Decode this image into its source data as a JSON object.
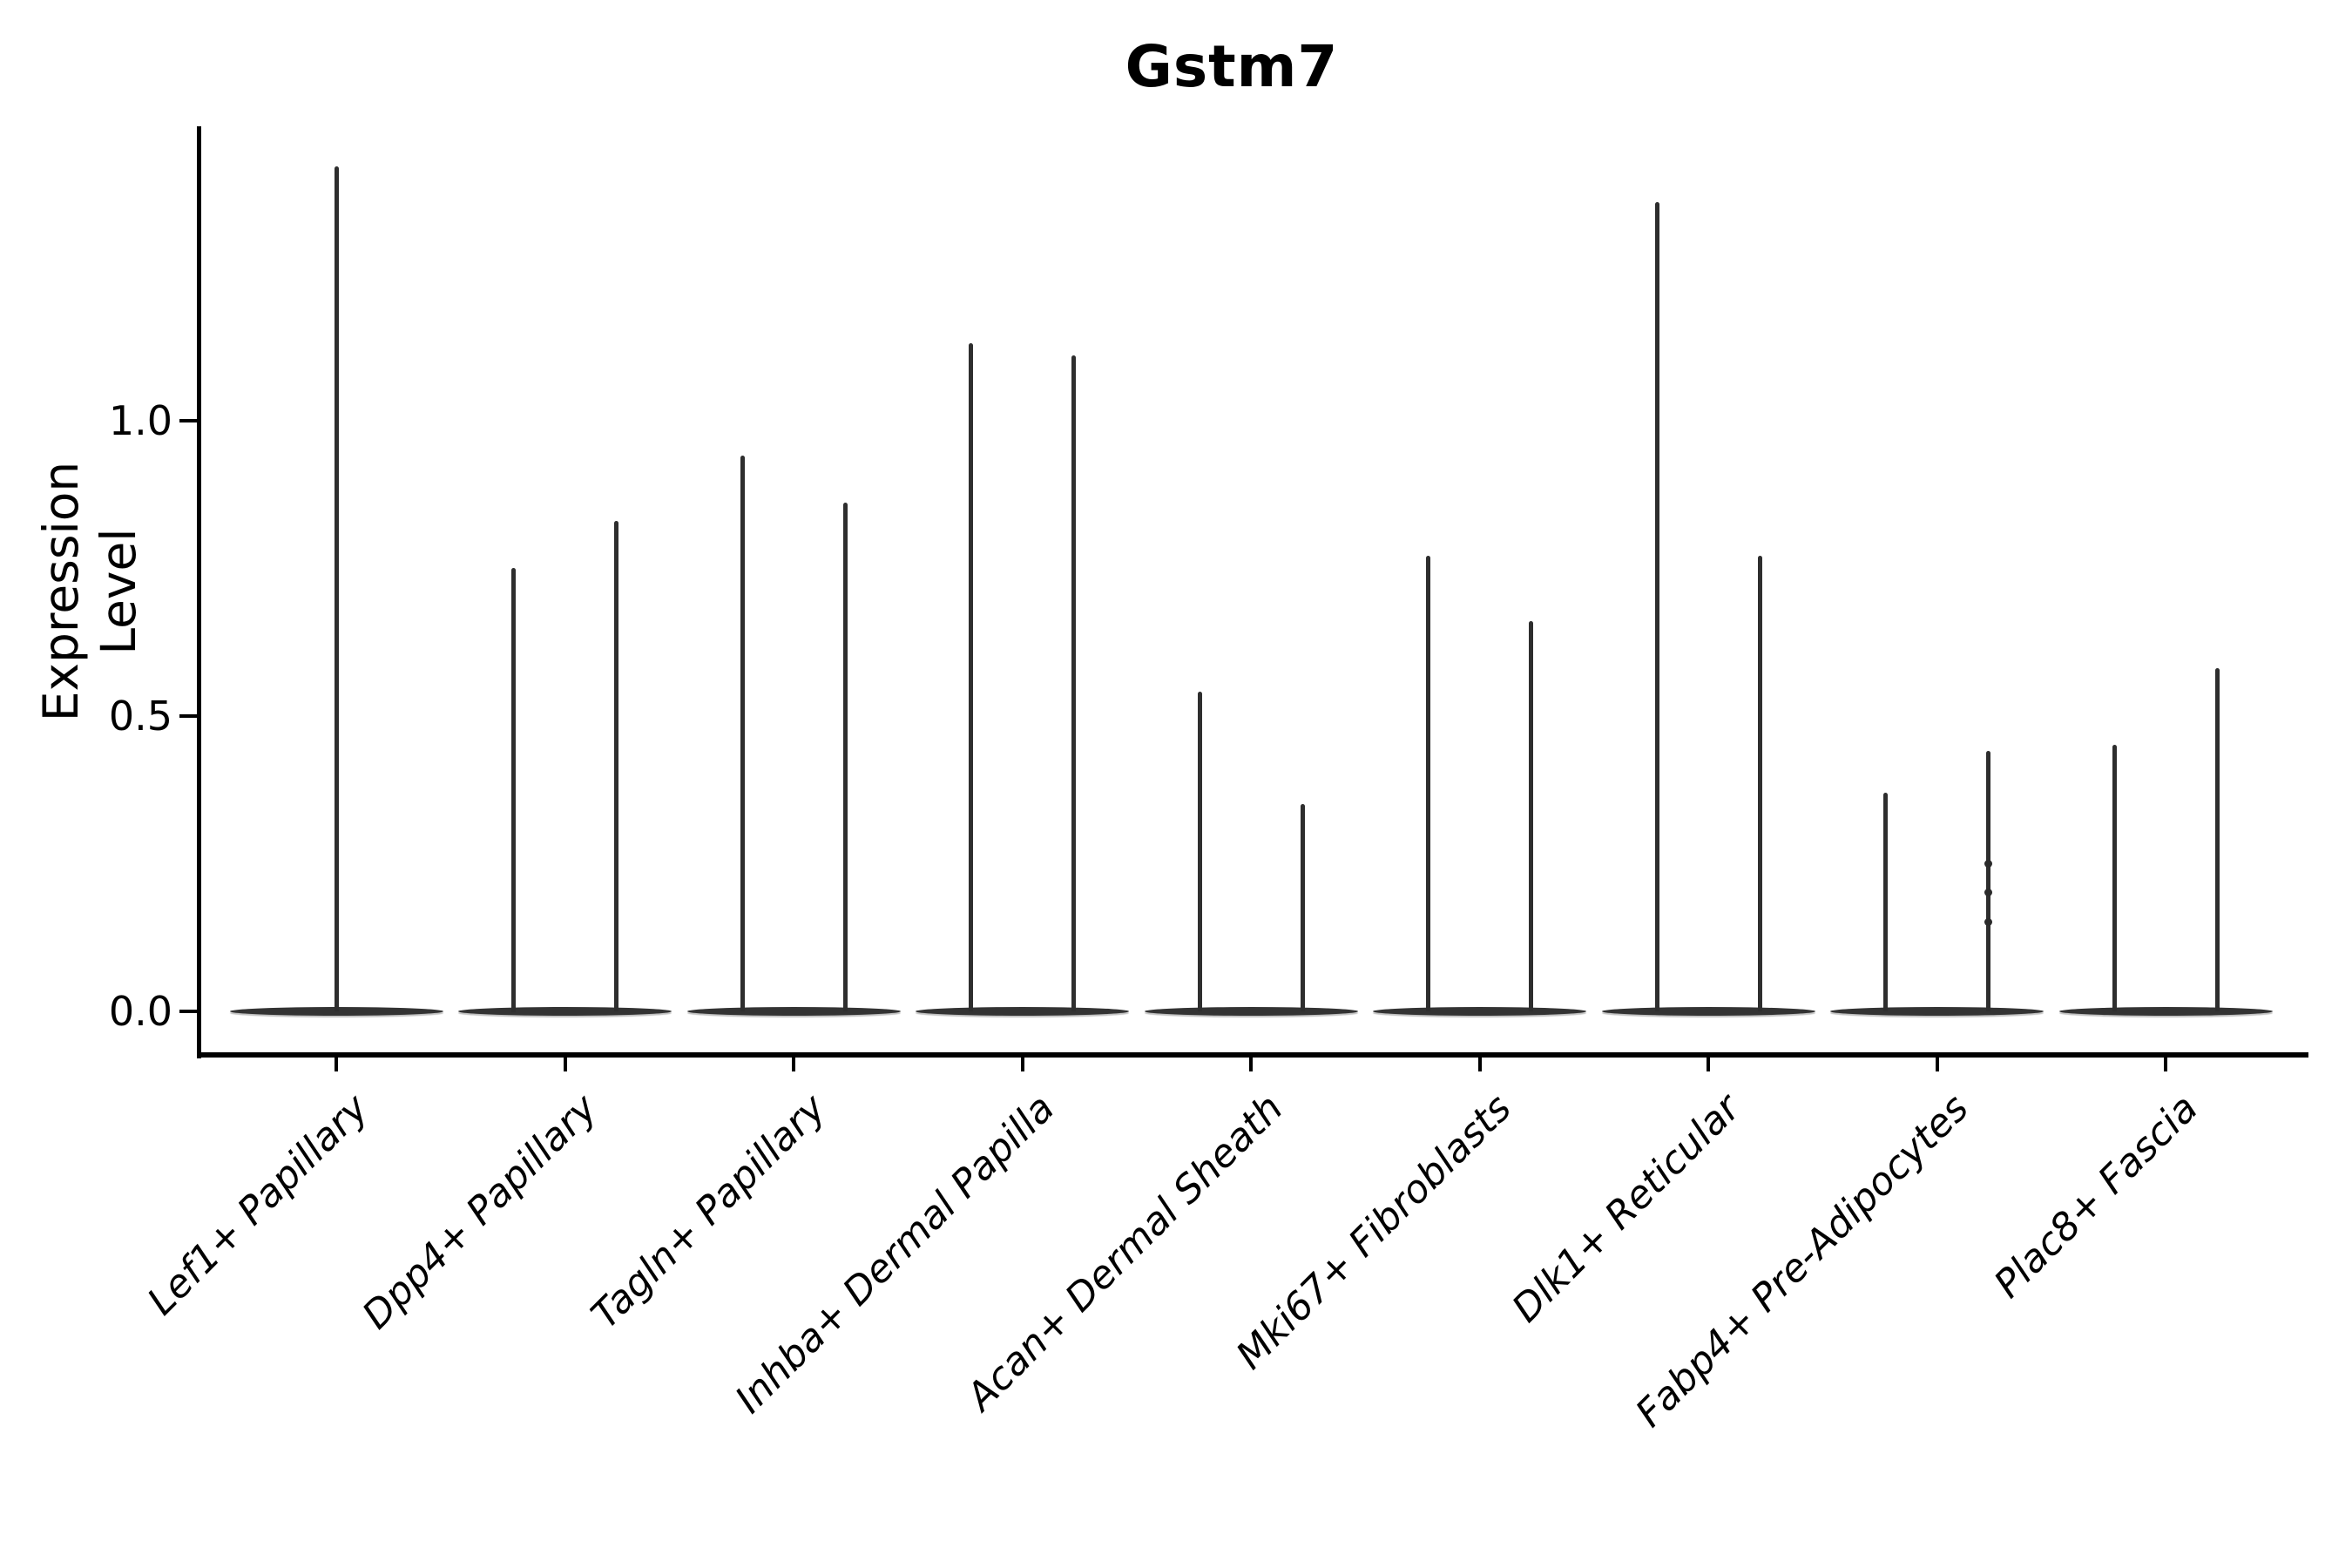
{
  "figure": {
    "title": "Gstm7",
    "y_axis": {
      "label": "Expression Level",
      "tick_labels": [
        "0.0",
        "0.5",
        "1.0"
      ]
    }
  },
  "chart_data": {
    "type": "violin",
    "title": "Gstm7",
    "xlabel": "",
    "ylabel": "Expression Level",
    "ylim": [
      -0.07,
      1.5
    ],
    "yticks": [
      0.0,
      0.5,
      1.0
    ],
    "ytick_labels": [
      "0.0",
      "0.5",
      "1.0"
    ],
    "grid": false,
    "legend": null,
    "categories": [
      "Lef1+ Papillary",
      "Dpp4+ Papillary",
      "Tagln+ Papillary",
      "Inhba+ Dermal Papilla",
      "Acan+ Dermal Sheath",
      "Mki67+ Fibroblasts",
      "Dlk1+ Reticular",
      "Fabp4+ Pre-Adipocytes",
      "Plac8+ Fascia"
    ],
    "series": [
      {
        "category": "Lef1+ Papillary",
        "violin_maxima": [
          1.43
        ]
      },
      {
        "category": "Dpp4+ Papillary",
        "violin_maxima": [
          0.75,
          0.83
        ]
      },
      {
        "category": "Tagln+ Papillary",
        "violin_maxima": [
          0.94,
          0.86
        ]
      },
      {
        "category": "Inhba+ Dermal Papilla",
        "violin_maxima": [
          1.13,
          1.11
        ]
      },
      {
        "category": "Acan+ Dermal Sheath",
        "violin_maxima": [
          0.54,
          0.35
        ]
      },
      {
        "category": "Mki67+ Fibroblasts",
        "violin_maxima": [
          0.77,
          0.66
        ]
      },
      {
        "category": "Dlk1+ Reticular",
        "violin_maxima": [
          1.37,
          0.77
        ]
      },
      {
        "category": "Fabp4+ Pre-Adipocytes",
        "violin_maxima": [
          0.37,
          0.44
        ]
      },
      {
        "category": "Plac8+ Fascia",
        "violin_maxima": [
          0.45,
          0.58
        ]
      }
    ],
    "violin_baseline_value": 0.0,
    "jitter_dots": [
      {
        "category_index": 7,
        "violin_index": 1,
        "value": 0.25
      },
      {
        "category_index": 7,
        "violin_index": 1,
        "value": 0.2
      },
      {
        "category_index": 7,
        "violin_index": 1,
        "value": 0.15
      }
    ],
    "style": {
      "violin_color": "#333333",
      "violin_edge_highlight": "#bdbdbd",
      "axis_color": "#000000",
      "text_color": "#000000",
      "background": "#ffffff"
    }
  }
}
